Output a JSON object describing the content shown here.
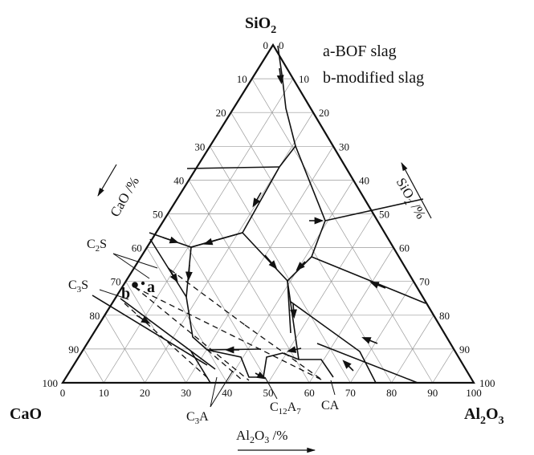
{
  "vertices": {
    "top": {
      "label": "SiO",
      "sub": "2"
    },
    "left": {
      "label": "CaO"
    },
    "right": {
      "label": "Al",
      "sub1": "2",
      "mid": "O",
      "sub2": "3"
    }
  },
  "legend": {
    "line_a": "a-BOF slag",
    "line_b": "b-modified slag"
  },
  "axes": {
    "cao": {
      "text": "CaO /%"
    },
    "sio2": {
      "pre": "SiO",
      "sub": "2",
      "post": " /%"
    },
    "al2o3": {
      "pre": "Al",
      "sub1": "2",
      "mid": "O",
      "sub2": "3",
      "post": " /%"
    }
  },
  "ticks": {
    "bottom": [
      "0",
      "10",
      "20",
      "30",
      "40",
      "50",
      "60",
      "70",
      "80",
      "90",
      "100"
    ],
    "left": [
      "0",
      "10",
      "20",
      "30",
      "40",
      "50",
      "60",
      "70",
      "80",
      "90",
      "100"
    ],
    "right": [
      "100",
      "90",
      "80",
      "70",
      "60",
      "50",
      "40",
      "30",
      "20",
      "10",
      "0"
    ]
  },
  "phases": {
    "c2s": {
      "main": "C",
      "sub": "2",
      "end": "S"
    },
    "c3s": {
      "main": "C",
      "sub": "3",
      "end": "S"
    },
    "c3a": {
      "main": "C",
      "sub": "3",
      "end": "A"
    },
    "c12a7": {
      "main": "C",
      "sub": "12",
      "end": "A",
      "sub2": "7"
    },
    "ca": {
      "main": "CA"
    }
  },
  "points": {
    "a": {
      "label": "a"
    },
    "b": {
      "label": "b"
    }
  }
}
